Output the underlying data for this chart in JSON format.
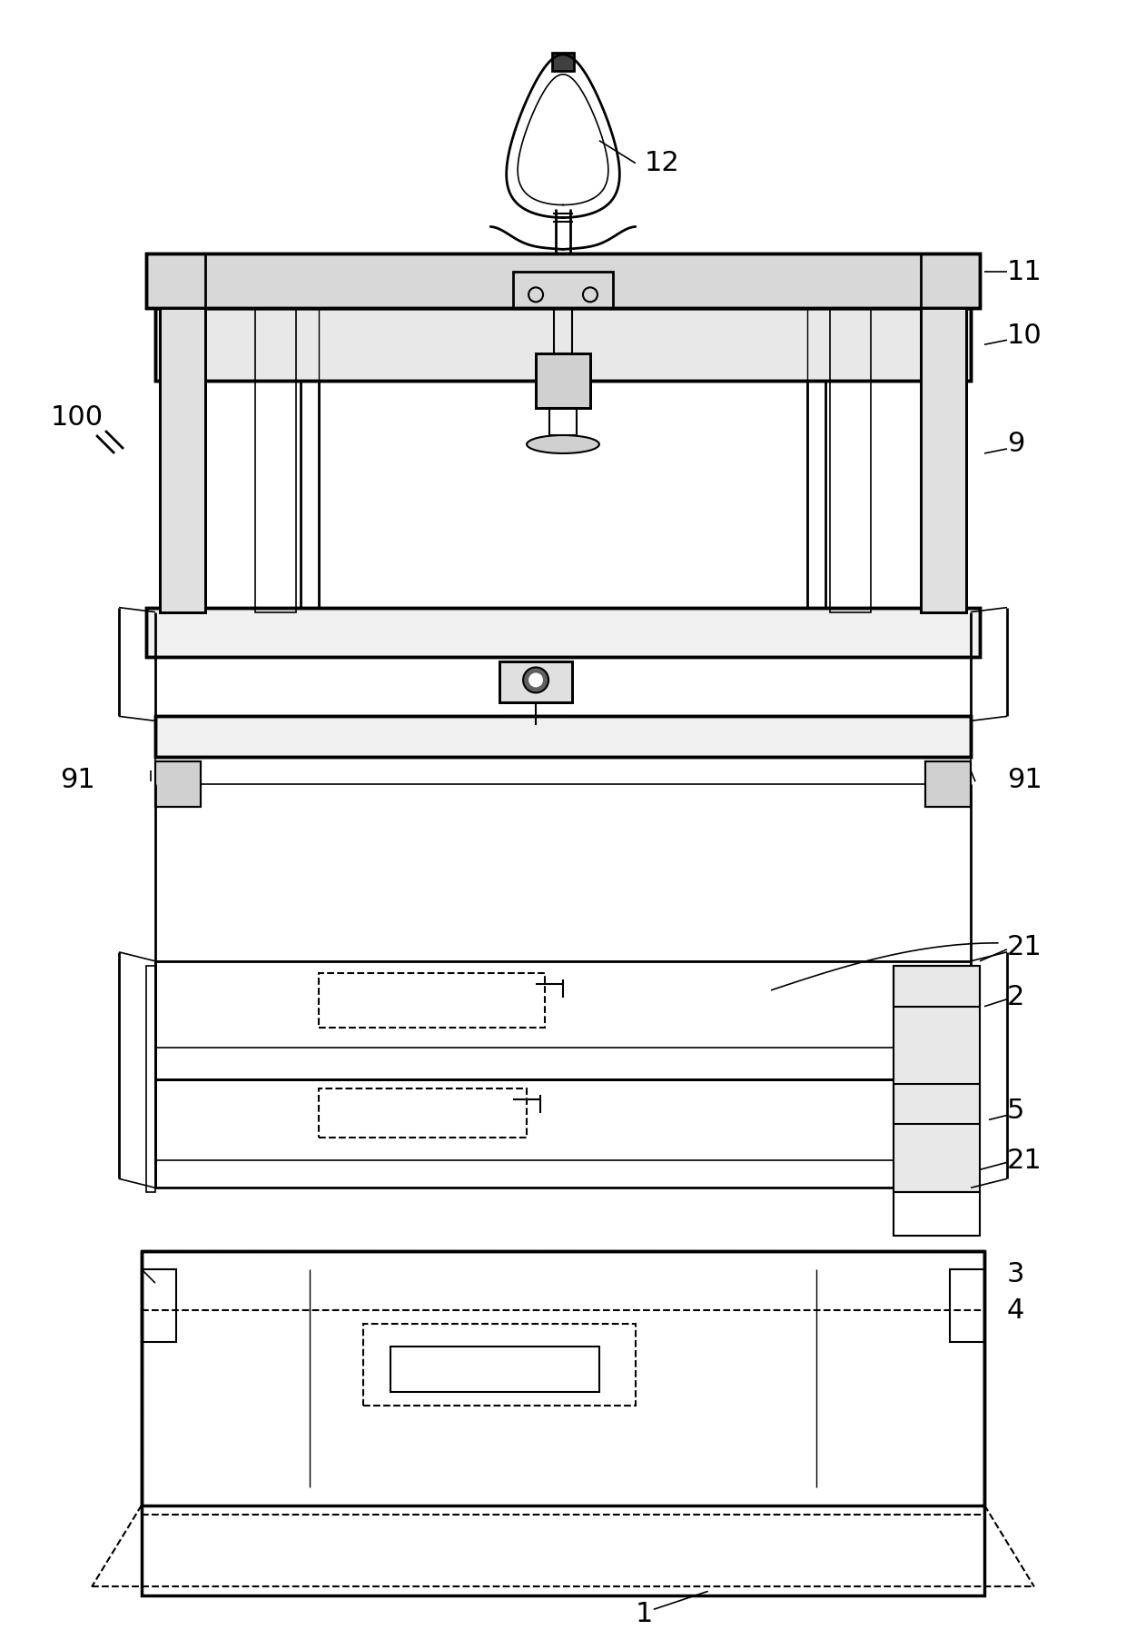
{
  "bg_color": "#ffffff",
  "line_color": "#000000",
  "figsize": [
    12.4,
    17.94
  ],
  "dpi": 100
}
